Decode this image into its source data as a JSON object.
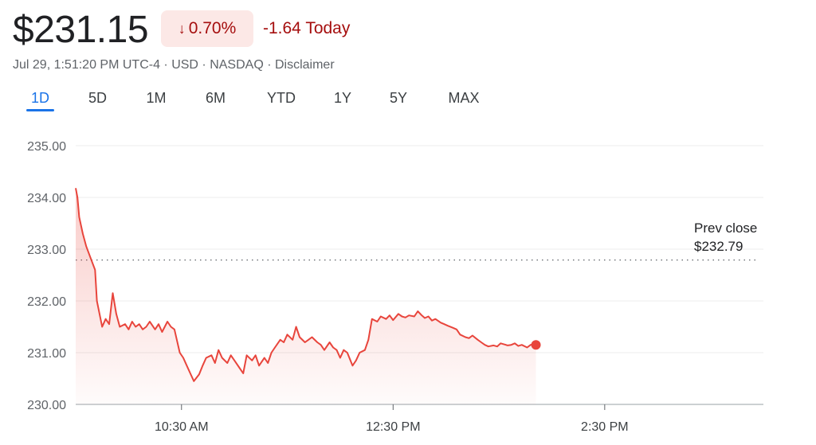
{
  "header": {
    "price": "$231.15",
    "change_arrow": "↓",
    "change_percent": "0.70%",
    "change_today": "-1.64 Today",
    "meta": "Jul 29, 1:51:20 PM UTC-4 · USD · NASDAQ · Disclaimer"
  },
  "tabs": [
    {
      "label": "1D",
      "active": true
    },
    {
      "label": "5D",
      "active": false
    },
    {
      "label": "1M",
      "active": false
    },
    {
      "label": "6M",
      "active": false
    },
    {
      "label": "YTD",
      "active": false
    },
    {
      "label": "1Y",
      "active": false
    },
    {
      "label": "5Y",
      "active": false
    },
    {
      "label": "MAX",
      "active": false
    }
  ],
  "colors": {
    "line": "#e8453c",
    "negative_text": "#a50e0e",
    "badge_bg": "#fce8e6",
    "accent": "#1a73e8"
  },
  "chart_data": {
    "type": "area",
    "ylim": [
      230.0,
      235.0
    ],
    "yticks": [
      "230.00",
      "231.00",
      "232.00",
      "233.00",
      "234.00",
      "235.00"
    ],
    "x_range": [
      "09:30",
      "16:00"
    ],
    "xticks": [
      {
        "time": "10:30",
        "label": "10:30 AM"
      },
      {
        "time": "12:30",
        "label": "12:30 PM"
      },
      {
        "time": "14:30",
        "label": "2:30 PM"
      }
    ],
    "prev_close": {
      "label": "Prev close",
      "value_label": "$232.79",
      "value": 232.79
    },
    "series": [
      {
        "x": [
          "09:30",
          "09:31",
          "09:32",
          "09:34",
          "09:36",
          "09:39",
          "09:41",
          "09:42",
          "09:45",
          "09:47",
          "09:49",
          "09:51",
          "09:53",
          "09:55",
          "09:58",
          "10:00",
          "10:02",
          "10:04",
          "10:06",
          "10:08",
          "10:10",
          "10:12",
          "10:15",
          "10:17",
          "10:19",
          "10:22",
          "10:24",
          "10:26",
          "10:29",
          "10:31",
          "10:33",
          "10:35",
          "10:37",
          "10:40",
          "10:42",
          "10:44",
          "10:47",
          "10:49",
          "10:51",
          "10:53",
          "10:56",
          "10:58",
          "11:00",
          "11:03",
          "11:05",
          "11:07",
          "11:10",
          "11:12",
          "11:14",
          "11:17",
          "11:19",
          "11:21",
          "11:23",
          "11:26",
          "11:28",
          "11:30",
          "11:33",
          "11:35",
          "11:37",
          "11:40",
          "11:42",
          "11:44",
          "11:47",
          "11:49",
          "11:51",
          "11:54",
          "11:56",
          "11:58",
          "12:00",
          "12:02",
          "12:04",
          "12:07",
          "12:09",
          "12:11",
          "12:14",
          "12:16",
          "12:18",
          "12:21",
          "12:23",
          "12:26",
          "12:28",
          "12:30",
          "12:33",
          "12:35",
          "12:37",
          "12:39",
          "12:42",
          "12:44",
          "12:46",
          "12:48",
          "12:50",
          "12:52",
          "12:54",
          "12:57",
          "12:59",
          "13:01",
          "13:04",
          "13:06",
          "13:08",
          "13:11",
          "13:13",
          "13:15",
          "13:18",
          "13:20",
          "13:22",
          "13:24",
          "13:27",
          "13:29",
          "13:31",
          "13:33",
          "13:35",
          "13:37",
          "13:39",
          "13:41",
          "13:43",
          "13:46",
          "13:48",
          "13:50",
          "13:51"
        ],
        "values": [
          234.18,
          234.0,
          233.62,
          233.3,
          233.05,
          232.78,
          232.6,
          232.0,
          231.5,
          231.65,
          231.55,
          232.15,
          231.75,
          231.5,
          231.55,
          231.45,
          231.6,
          231.5,
          231.55,
          231.45,
          231.5,
          231.6,
          231.45,
          231.55,
          231.4,
          231.6,
          231.5,
          231.45,
          231.0,
          230.9,
          230.75,
          230.6,
          230.45,
          230.58,
          230.75,
          230.9,
          230.95,
          230.8,
          231.05,
          230.9,
          230.8,
          230.95,
          230.85,
          230.7,
          230.6,
          230.95,
          230.85,
          230.95,
          230.75,
          230.9,
          230.8,
          231.0,
          231.1,
          231.25,
          231.2,
          231.35,
          231.25,
          231.5,
          231.3,
          231.2,
          231.25,
          231.3,
          231.2,
          231.15,
          231.05,
          231.2,
          231.1,
          231.05,
          230.9,
          231.05,
          231.0,
          230.75,
          230.85,
          231.0,
          231.05,
          231.25,
          231.65,
          231.6,
          231.7,
          231.65,
          231.72,
          231.63,
          231.75,
          231.7,
          231.68,
          231.72,
          231.7,
          231.8,
          231.73,
          231.67,
          231.7,
          231.62,
          231.65,
          231.58,
          231.55,
          231.52,
          231.48,
          231.45,
          231.35,
          231.3,
          231.28,
          231.33,
          231.25,
          231.2,
          231.15,
          231.12,
          231.14,
          231.12,
          231.18,
          231.16,
          231.14,
          231.15,
          231.18,
          231.13,
          231.15,
          231.1,
          231.15,
          231.17,
          231.15
        ]
      }
    ]
  }
}
